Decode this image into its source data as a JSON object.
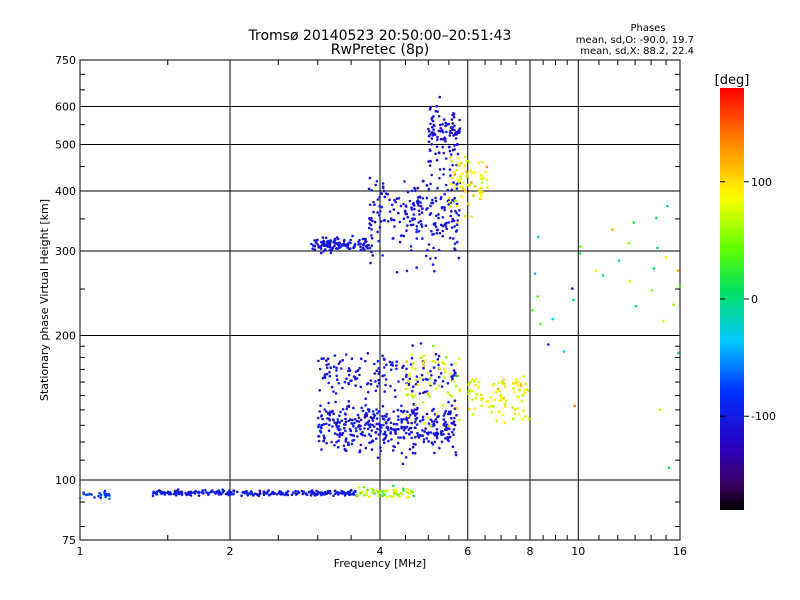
{
  "chart_data": {
    "type": "scatter",
    "title": "Tromsø 20140523 20:50:00–20:51:43",
    "subtitle": "RwPretec (8p)",
    "xlabel": "Frequency [MHz]",
    "ylabel": "Stationary phase Virtual Height [km]",
    "x_scale": "log",
    "y_scale": "log",
    "xlim": [
      1,
      16
    ],
    "ylim": [
      75,
      750
    ],
    "x_ticks": [
      1,
      2,
      4,
      6,
      8,
      10,
      16
    ],
    "x_tick_labels": [
      "1",
      "2",
      "4",
      "6",
      "8",
      "10",
      "16"
    ],
    "y_ticks": [
      75,
      100,
      200,
      300,
      400,
      500,
      600,
      750
    ],
    "y_tick_labels": [
      "75",
      "100",
      "200",
      "300",
      "400",
      "500",
      "600",
      "750"
    ],
    "grid": true,
    "phases_box": {
      "title": "Phases",
      "line1": "mean, sd,O: -90.0, 19.7",
      "line2": "mean, sd,X:  88.2, 22.4"
    },
    "colorbar": {
      "label": "[deg]",
      "range": [
        -180,
        180
      ],
      "ticks": [
        100,
        0,
        -100
      ],
      "tick_labels": [
        "100",
        "0",
        "-100"
      ],
      "colormap": "rainbow (black → violet → blue → cyan → green → yellow → orange → red)"
    },
    "point_groups": [
      {
        "name": "",
        "x_range": [
          1.0,
          1.15
        ],
        "y_center": 93,
        "y_spread": 1.5,
        "count": 25,
        "phase_center": -75,
        "phase_spread": 20
      },
      {
        "name": "",
        "x_range": [
          1.4,
          3.6
        ],
        "y_center": 94,
        "y_spread": 1.0,
        "count": 260,
        "phase_center": -100,
        "phase_spread": 12
      },
      {
        "name": "",
        "x_range": [
          3.6,
          4.7
        ],
        "y_center": 94,
        "y_spread": 2.0,
        "count": 60,
        "phase_center": 60,
        "phase_spread": 40
      },
      {
        "name": "",
        "x_range": [
          3.0,
          5.7
        ],
        "y_center": 130,
        "y_spread": 12,
        "count": 420,
        "phase_center": -105,
        "phase_spread": 15
      },
      {
        "name": "",
        "x_range": [
          3.0,
          5.7
        ],
        "y_center": 165,
        "y_spread": 15,
        "count": 160,
        "phase_center": -105,
        "phase_spread": 15
      },
      {
        "name": "",
        "x_range": [
          4.5,
          5.8
        ],
        "y_center": 160,
        "y_spread": 25,
        "count": 70,
        "phase_center": 80,
        "phase_spread": 30
      },
      {
        "name": "",
        "x_range": [
          6.0,
          8.0
        ],
        "y_center": 150,
        "y_spread": 15,
        "count": 90,
        "phase_center": 85,
        "phase_spread": 25
      },
      {
        "name": "",
        "x_range": [
          2.9,
          3.8
        ],
        "y_center": 310,
        "y_spread": 8,
        "count": 130,
        "phase_center": -105,
        "phase_spread": 12
      },
      {
        "name": "",
        "x_range": [
          3.8,
          5.8
        ],
        "y_center": 360,
        "y_spread": 60,
        "count": 240,
        "phase_center": -105,
        "phase_spread": 12
      },
      {
        "name": "",
        "x_range": [
          5.0,
          5.8
        ],
        "y_center": 520,
        "y_spread": 60,
        "count": 110,
        "phase_center": -110,
        "phase_spread": 12
      },
      {
        "name": "",
        "x_range": [
          5.5,
          6.6
        ],
        "y_center": 420,
        "y_spread": 50,
        "count": 80,
        "phase_center": 90,
        "phase_spread": 25
      },
      {
        "name": "",
        "x_range": [
          7.5,
          16
        ],
        "y_center": 250,
        "y_spread": 120,
        "count": 35,
        "phase_center": 40,
        "phase_spread": 100
      }
    ]
  }
}
